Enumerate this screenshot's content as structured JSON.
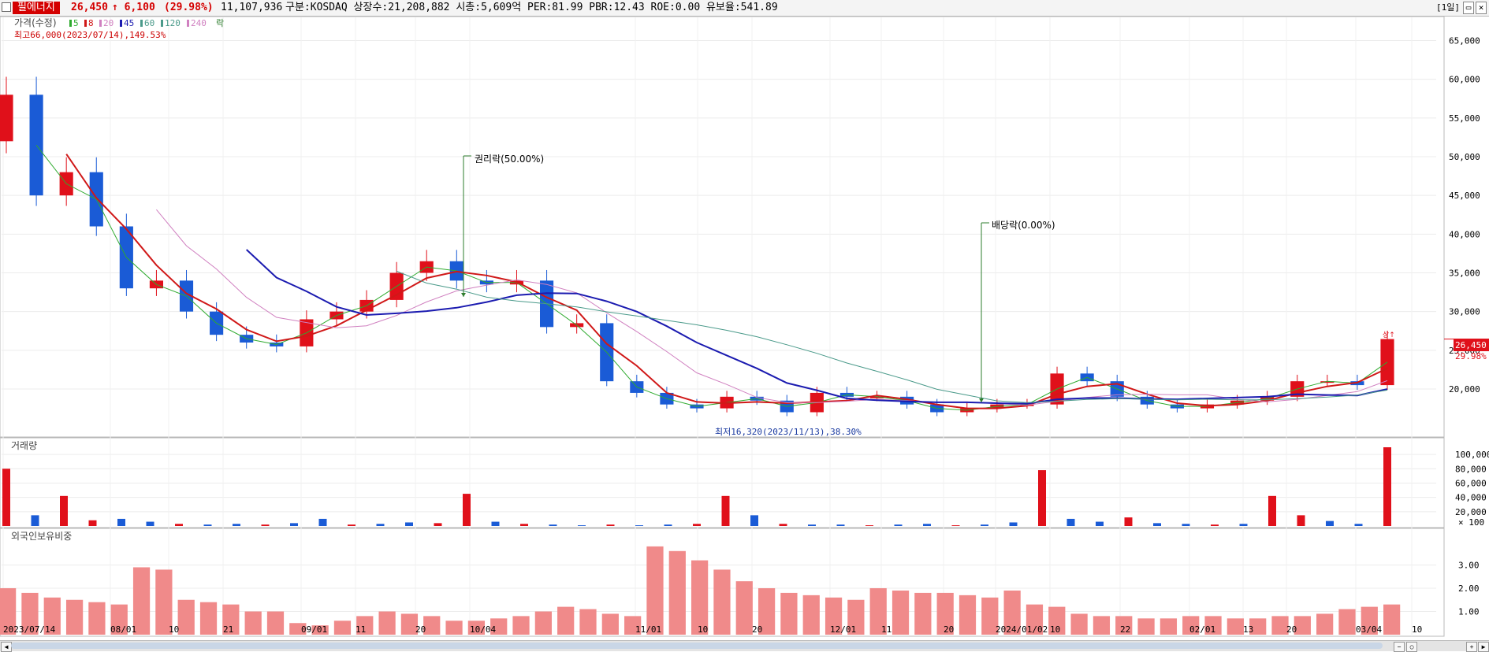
{
  "header": {
    "stock_name": "필에너지",
    "price": "26,450",
    "change": "↑ 6,100",
    "change_pct": "(29.98%)",
    "volume": "11,107,936",
    "info": "구분:KOSDAQ 상장수:21,208,882 시총:5,609억 PER:81.99 PBR:12.43 ROE:0.00 유보율:541.89",
    "period": "[1일]"
  },
  "price_panel": {
    "legend": {
      "title": "가격(수정)",
      "ma": [
        "5",
        "8",
        "20",
        "45",
        "60",
        "120",
        "240"
      ],
      "extra": "락"
    },
    "high_note": "최고66,000(2023/07/14),149.53%",
    "low_note": "최저16,320(2023/11/13),38.30%",
    "events": [
      {
        "label": "권리락(50.00%)"
      },
      {
        "label": "배당락(0.00%)"
      }
    ],
    "axis": [
      "65,000",
      "60,000",
      "55,000",
      "50,000",
      "45,000",
      "40,000",
      "35,000",
      "30,000",
      "25,000",
      "20,000"
    ],
    "last_price": "26,450",
    "last_pct": "29.98%",
    "badge": "상↑"
  },
  "volume_panel": {
    "title": "거래량",
    "axis": [
      "100,000",
      "80,000",
      "60,000",
      "40,000",
      "20,000"
    ],
    "unit": "× 100"
  },
  "foreign_panel": {
    "title": "외국인보유비중",
    "axis": [
      "3.00",
      "2.00",
      "1.00"
    ]
  },
  "x_axis": [
    "2023/07/14",
    "08/01",
    "10",
    "21",
    "09/01",
    "11",
    "20",
    "10/04",
    "11/01",
    "10",
    "20",
    "12/01",
    "11",
    "20",
    "2024/01/02",
    "10",
    "22",
    "02/01",
    "13",
    "20",
    "03/04",
    "10"
  ],
  "colors": {
    "up": "#e0101a",
    "down": "#1a5bd6",
    "ma5": "#2eaa2e",
    "ma20": "#d01818",
    "ma60": "#1b1bb0",
    "ma120": "#4a9a8a",
    "ma240": "#d080c0",
    "foreign": "#f08a8a"
  },
  "chart_data": [
    {
      "type": "candlestick",
      "title": "필에너지",
      "ylabel": "",
      "ylim": [
        14000,
        68000
      ],
      "x_dates": [
        "2023/07/14",
        "08/01",
        "10",
        "21",
        "09/01",
        "11",
        "20",
        "10/04",
        "11/01",
        "10",
        "20",
        "12/01",
        "11",
        "20",
        "2024/01/02",
        "10",
        "22",
        "02/01",
        "13",
        "20",
        "03/04"
      ],
      "close_series": [
        58000,
        45000,
        48000,
        41000,
        33000,
        34000,
        30000,
        27000,
        26000,
        25500,
        29000,
        30000,
        31500,
        35000,
        36500,
        34000,
        33500,
        34000,
        28000,
        28500,
        21000,
        19500,
        18000,
        17500,
        19000,
        18500,
        17000,
        19500,
        19000,
        19000,
        18000,
        17000,
        17500,
        18000,
        18000,
        22000,
        21000,
        19000,
        18000,
        17500,
        18000,
        18500,
        19000,
        21000,
        21000,
        20500,
        26450
      ],
      "ohlc": [
        {
          "date": "2023/07/14",
          "open": 52000,
          "high": 66000,
          "low": 49000,
          "close": 60000
        },
        {
          "date": "2023/07/24",
          "open": 45000,
          "high": 50000,
          "low": 43000,
          "close": 48000
        },
        {
          "date": "2023/08/01",
          "open": 36000,
          "high": 38000,
          "low": 31000,
          "close": 32000
        },
        {
          "date": "2023/08/21",
          "open": 26000,
          "high": 28000,
          "low": 25000,
          "close": 27000
        },
        {
          "date": "2023/09/11",
          "open": 32000,
          "high": 37000,
          "low": 31000,
          "close": 35000
        },
        {
          "date": "2023/09/20",
          "open": 34000,
          "high": 36000,
          "low": 32000,
          "close": 33000
        },
        {
          "date": "2023/10/04",
          "open": 29000,
          "high": 30000,
          "low": 25500,
          "close": 26000
        },
        {
          "date": "2023/10/20",
          "open": 19500,
          "high": 20500,
          "low": 18000,
          "close": 18500
        },
        {
          "date": "2023/11/13",
          "open": 17500,
          "high": 18500,
          "low": 16320,
          "close": 17000
        },
        {
          "date": "2023/11/20",
          "open": 18000,
          "high": 21000,
          "low": 17500,
          "close": 20000
        },
        {
          "date": "2023/12/20",
          "open": 17500,
          "high": 18500,
          "low": 17000,
          "close": 18000
        },
        {
          "date": "2024/01/02",
          "open": 19000,
          "high": 25000,
          "low": 18500,
          "close": 23000
        },
        {
          "date": "2024/02/13",
          "open": 17500,
          "high": 18500,
          "low": 17000,
          "close": 18000
        },
        {
          "date": "2024/02/26",
          "open": 19000,
          "high": 23000,
          "low": 18500,
          "close": 22000
        },
        {
          "date": "2024/03/06",
          "open": 20350,
          "high": 26450,
          "low": 20000,
          "close": 26450
        }
      ]
    },
    {
      "type": "bar",
      "title": "거래량",
      "ylabel": "× 100",
      "ylim": [
        0,
        110000
      ],
      "series": [
        {
          "name": "거래량",
          "values": [
            80000,
            15000,
            42000,
            8000,
            10000,
            6000,
            3000,
            2000,
            3000,
            2000,
            4000,
            10000,
            2000,
            3000,
            5000,
            4000,
            45000,
            6000,
            3000,
            2000,
            1000,
            2000,
            1000,
            2000,
            3000,
            42000,
            15000,
            3000,
            2000,
            2000,
            1000,
            2000,
            3000,
            1000,
            2000,
            5000,
            78000,
            10000,
            6000,
            12000,
            4000,
            3000,
            2000,
            3000,
            42000,
            15000,
            7000,
            3000,
            110000
          ]
        }
      ]
    },
    {
      "type": "bar",
      "title": "외국인보유비중",
      "ylabel": "",
      "ylim": [
        0,
        4
      ],
      "series": [
        {
          "name": "외국인보유비중",
          "values": [
            2.0,
            1.8,
            1.6,
            1.5,
            1.4,
            1.3,
            2.9,
            2.8,
            1.5,
            1.4,
            1.3,
            1.0,
            1.0,
            0.5,
            0.4,
            0.6,
            0.8,
            1.0,
            0.9,
            0.8,
            0.6,
            0.6,
            0.7,
            0.8,
            1.0,
            1.2,
            1.1,
            0.9,
            0.8,
            3.8,
            3.6,
            3.2,
            2.8,
            2.3,
            2.0,
            1.8,
            1.7,
            1.6,
            1.5,
            2.0,
            1.9,
            1.8,
            1.8,
            1.7,
            1.6,
            1.9,
            1.3,
            1.2,
            0.9,
            0.8,
            0.8,
            0.7,
            0.7,
            0.8,
            0.8,
            0.7,
            0.7,
            0.8,
            0.8,
            0.9,
            1.1,
            1.2,
            1.3
          ]
        }
      ]
    }
  ]
}
